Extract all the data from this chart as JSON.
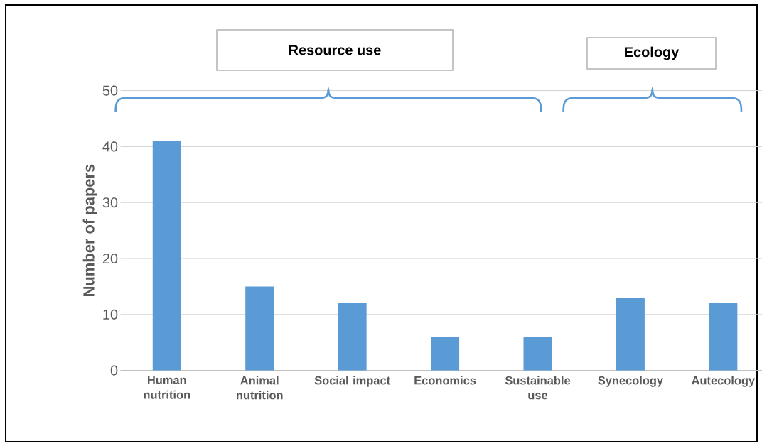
{
  "chart_data": {
    "type": "bar",
    "ylabel": "Number of papers",
    "categories": [
      "Human nutrition",
      "Animal nutrition",
      "Social impact",
      "Economics",
      "Sustainable use",
      "Synecology",
      "Autecology"
    ],
    "values": [
      41,
      15,
      12,
      6,
      6,
      13,
      12
    ],
    "color": "#5b9bd5",
    "ylim": [
      0,
      50
    ],
    "yticks": [
      0,
      10,
      20,
      30,
      40,
      50
    ],
    "grid": "y",
    "annotations": [
      "Resource use",
      "Ecology"
    ]
  }
}
